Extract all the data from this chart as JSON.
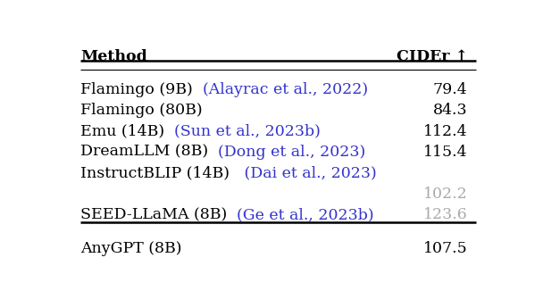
{
  "header_method": "Method",
  "header_value": "CIDEr ↑",
  "rows": [
    {
      "method_black": "Flamingo (9B)",
      "method_blue": "  (Alayrac et al., 2022)",
      "value": "79.4",
      "value_color": "black"
    },
    {
      "method_black": "Flamingo (80B)",
      "method_blue": "",
      "value": "84.3",
      "value_color": "black"
    },
    {
      "method_black": "Emu (14B)",
      "method_blue": "  (Sun et al., 2023b)",
      "value": "112.4",
      "value_color": "black"
    },
    {
      "method_black": "DreamLLM (8B)",
      "method_blue": "  (Dong et al., 2023)",
      "value": "115.4",
      "value_color": "black"
    },
    {
      "method_black": "InstructBLIP (14B)",
      "method_blue": "   (Dai et al., 2023)",
      "value": "",
      "value_color": "black"
    },
    {
      "method_black": "",
      "method_blue": "",
      "value": "102.2",
      "value_color": "#aaaaaa"
    },
    {
      "method_black": "SEED-LLaMA (8B)",
      "method_blue": "  (Ge et al., 2023b)",
      "value": "123.6",
      "value_color": "#aaaaaa"
    }
  ],
  "anygpt_method": "AnyGPT (8B)",
  "anygpt_value": "107.5",
  "blue_color": "#3333cc",
  "bg_color": "white",
  "font_size": 12.5
}
